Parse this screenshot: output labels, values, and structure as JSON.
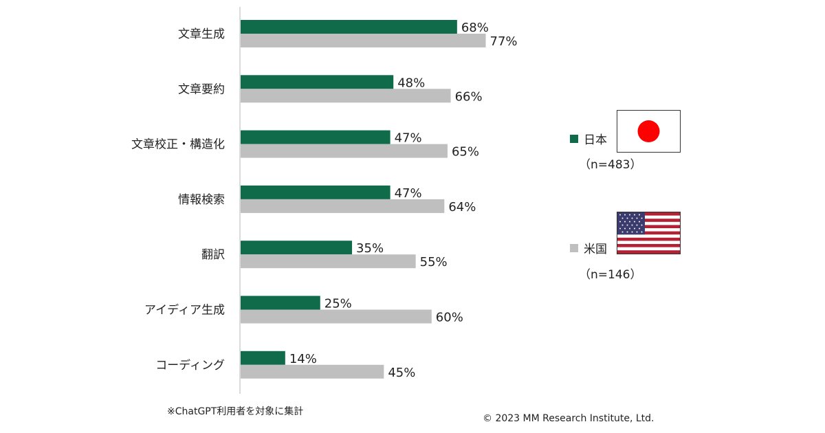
{
  "chart_data": {
    "type": "bar",
    "orientation": "horizontal",
    "categories": [
      "文章生成",
      "文章要約",
      "文章校正・構造化",
      "情報検索",
      "翻訳",
      "アイディア生成",
      "コーディング"
    ],
    "series": [
      {
        "name": "日本",
        "color": "#0f6b4a",
        "values": [
          68,
          48,
          47,
          47,
          35,
          25,
          14
        ],
        "labels": [
          "68%",
          "48%",
          "47%",
          "47%",
          "35%",
          "25%",
          "14%"
        ]
      },
      {
        "name": "米国",
        "color": "#bfbfbf",
        "values": [
          77,
          66,
          65,
          64,
          55,
          60,
          45
        ],
        "labels": [
          "77%",
          "66%",
          "65%",
          "64%",
          "55%",
          "60%",
          "45%"
        ]
      }
    ],
    "unit": "%",
    "grid": false
  },
  "legend": {
    "japan": {
      "label": "日本",
      "n": "（n=483）",
      "color": "#0f6b4a",
      "flag_icon": "japan-flag-icon"
    },
    "usa": {
      "label": "米国",
      "n": "（n=146）",
      "color": "#bfbfbf",
      "flag_icon": "usa-flag-icon"
    }
  },
  "note": "※ChatGPT利用者を対象に集計",
  "copyright": "© 2023 MM Research Institute, Ltd."
}
